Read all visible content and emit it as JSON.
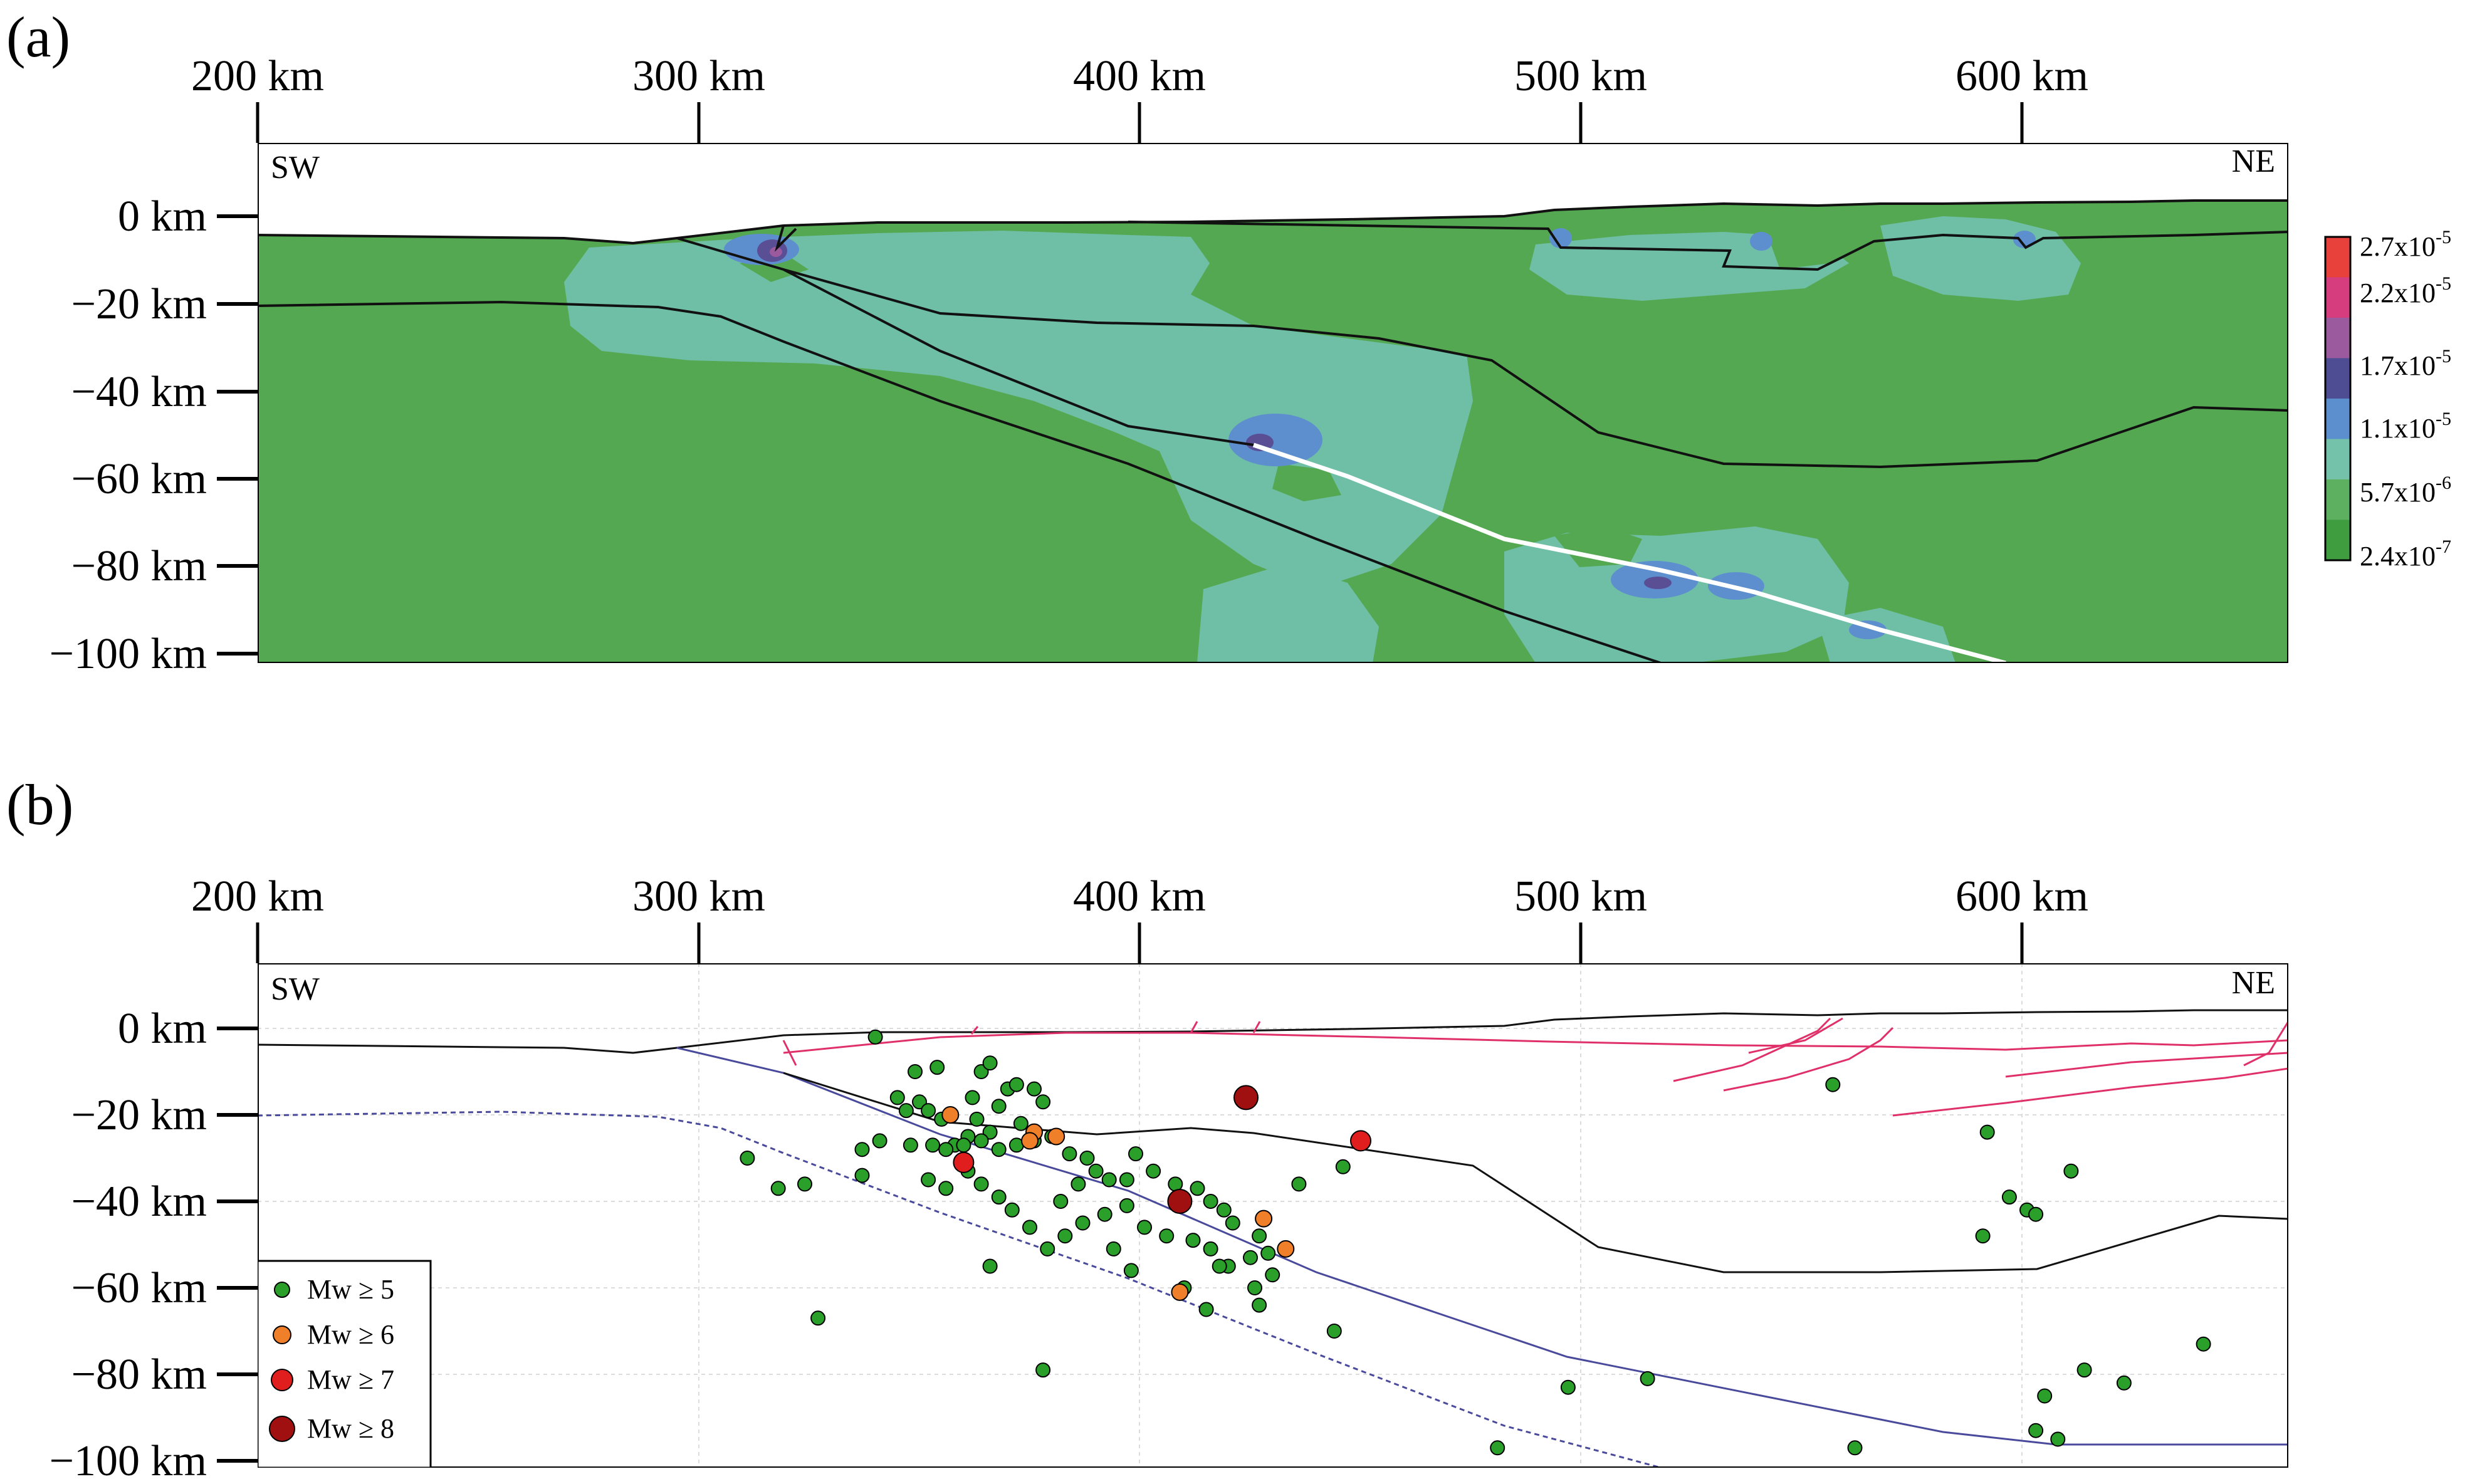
{
  "panel_a": {
    "label": "(a)",
    "x_ticks": [
      "200 km",
      "300 km",
      "400 km",
      "500 km",
      "600 km"
    ],
    "y_ticks": [
      "0 km",
      "−20 km",
      "−40 km",
      "−60 km",
      "−80 km",
      "−100 km"
    ],
    "left_corner": "SW",
    "right_corner": "NE",
    "colorbar": {
      "labels": [
        "2.7x10",
        "2.2x10",
        "1.7x10",
        "1.1x10",
        "5.7x10",
        "2.4x10"
      ],
      "exponents": [
        "-5",
        "-5",
        "-5",
        "-5",
        "-6",
        "-7"
      ],
      "colors": [
        "#e8413c",
        "#d63d7f",
        "#9b5a9e",
        "#4e4c93",
        "#5b8fce",
        "#74c2aa",
        "#5cb060",
        "#3f9c3f"
      ]
    },
    "colors": {
      "background": "#55a852",
      "teal": "#6fbea6",
      "blue": "#5d8fce",
      "purple": "#5a4f95",
      "outline": "#111111",
      "slab_top": "#ffffff"
    }
  },
  "panel_b": {
    "label": "(b)",
    "x_ticks": [
      "200 km",
      "300 km",
      "400 km",
      "500 km",
      "600 km"
    ],
    "y_ticks": [
      "0 km",
      "−20 km",
      "−40 km",
      "−60 km",
      "−80 km",
      "−100 km"
    ],
    "left_corner": "SW",
    "right_corner": "NE",
    "legend": [
      {
        "label": "Mw ≥ 5",
        "color": "#2aa02a"
      },
      {
        "label": "Mw ≥ 6",
        "color": "#f07f2a"
      },
      {
        "label": "Mw ≥ 7",
        "color": "#e01e1e"
      },
      {
        "label": "Mw ≥ 8",
        "color": "#a01010"
      }
    ],
    "colors": {
      "grid": "#d8d8d8",
      "fault": "#e0306a",
      "slab": "#4a4a9c",
      "moho": "#111111"
    }
  },
  "chart_data": {
    "type": "scatter",
    "x_axis_range_km": [
      200,
      660
    ],
    "y_axis_range_km": [
      -100,
      15
    ],
    "series": [
      {
        "name": "Mw ≥ 5",
        "points": [
          [
            340,
            -2
          ],
          [
            345,
            -16
          ],
          [
            349,
            -10
          ],
          [
            350,
            -17
          ],
          [
            352,
            -19
          ],
          [
            354,
            -9
          ],
          [
            347,
            -19
          ],
          [
            355,
            -21
          ],
          [
            358,
            -27
          ],
          [
            361,
            -25
          ],
          [
            362,
            -16
          ],
          [
            363,
            -21
          ],
          [
            364,
            -10
          ],
          [
            366,
            -8
          ],
          [
            368,
            -18
          ],
          [
            370,
            -14
          ],
          [
            372,
            -13
          ],
          [
            376,
            -14
          ],
          [
            378,
            -17
          ],
          [
            373,
            -22
          ],
          [
            366,
            -24
          ],
          [
            353,
            -27
          ],
          [
            348,
            -27
          ],
          [
            341,
            -26
          ],
          [
            337,
            -28
          ],
          [
            356,
            -28
          ],
          [
            360,
            -27
          ],
          [
            364,
            -26
          ],
          [
            368,
            -28
          ],
          [
            372,
            -27
          ],
          [
            376,
            -26
          ],
          [
            380,
            -25
          ],
          [
            384,
            -29
          ],
          [
            388,
            -30
          ],
          [
            390,
            -33
          ],
          [
            393,
            -35
          ],
          [
            397,
            -35
          ],
          [
            399,
            -29
          ],
          [
            403,
            -33
          ],
          [
            408,
            -36
          ],
          [
            413,
            -37
          ],
          [
            416,
            -40
          ],
          [
            419,
            -42
          ],
          [
            421,
            -45
          ],
          [
            427,
            -48
          ],
          [
            425,
            -53
          ],
          [
            420,
            -55
          ],
          [
            416,
            -51
          ],
          [
            412,
            -49
          ],
          [
            406,
            -48
          ],
          [
            401,
            -46
          ],
          [
            397,
            -41
          ],
          [
            392,
            -43
          ],
          [
            387,
            -45
          ],
          [
            383,
            -48
          ],
          [
            379,
            -51
          ],
          [
            375,
            -46
          ],
          [
            371,
            -42
          ],
          [
            368,
            -39
          ],
          [
            364,
            -36
          ],
          [
            361,
            -33
          ],
          [
            356,
            -37
          ],
          [
            352,
            -35
          ],
          [
            366,
            -55
          ],
          [
            429,
            -52
          ],
          [
            430,
            -57
          ],
          [
            427,
            -64
          ],
          [
            426,
            -60
          ],
          [
            418,
            -55
          ],
          [
            415,
            -65
          ],
          [
            382,
            -40
          ],
          [
            386,
            -36
          ],
          [
            394,
            -51
          ],
          [
            398,
            -56
          ],
          [
            410,
            -60
          ],
          [
            436,
            -36
          ],
          [
            446,
            -32
          ],
          [
            444,
            -70
          ],
          [
            327,
            -67
          ],
          [
            311,
            -30
          ],
          [
            318,
            -37
          ],
          [
            324,
            -36
          ],
          [
            337,
            -34
          ],
          [
            378,
            -79
          ],
          [
            481,
            -97
          ],
          [
            497,
            -83
          ],
          [
            515,
            -81
          ],
          [
            557,
            -13
          ],
          [
            562,
            -97
          ],
          [
            591,
            -48
          ],
          [
            592,
            -24
          ],
          [
            597,
            -39
          ],
          [
            601,
            -42
          ],
          [
            603,
            -43
          ],
          [
            605,
            -85
          ],
          [
            603,
            -93
          ],
          [
            608,
            -95
          ],
          [
            611,
            -33
          ],
          [
            614,
            -79
          ],
          [
            641,
            -73
          ],
          [
            623,
            -82
          ]
        ]
      },
      {
        "name": "Mw ≥ 6",
        "points": [
          [
            357,
            -20
          ],
          [
            376,
            -24
          ],
          [
            381,
            -25
          ],
          [
            409,
            -61
          ],
          [
            428,
            -44
          ],
          [
            433,
            -51
          ],
          [
            375,
            -26
          ]
        ]
      },
      {
        "name": "Mw ≥ 7",
        "points": [
          [
            360,
            -31
          ],
          [
            450,
            -26
          ]
        ]
      },
      {
        "name": "Mw ≥ 8",
        "points": [
          [
            409,
            -40
          ],
          [
            424,
            -16
          ]
        ]
      }
    ]
  }
}
